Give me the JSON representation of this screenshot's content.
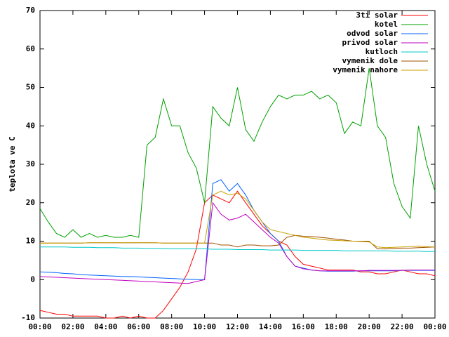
{
  "chart_data": {
    "type": "line",
    "ylabel": "teplota ve C",
    "x": [
      0,
      0.5,
      1,
      1.5,
      2,
      2.5,
      3,
      3.5,
      4,
      4.5,
      5,
      5.5,
      6,
      6.5,
      7,
      7.5,
      8,
      8.5,
      9,
      9.5,
      10,
      10.5,
      11,
      11.5,
      12,
      12.5,
      13,
      13.5,
      14,
      14.5,
      15,
      15.5,
      16,
      16.5,
      17,
      17.5,
      18,
      18.5,
      19,
      19.5,
      20,
      20.5,
      21,
      21.5,
      22,
      22.5,
      23,
      23.5,
      24
    ],
    "xlim": [
      0,
      24
    ],
    "xticks": [
      {
        "value": 0,
        "label": "00:00"
      },
      {
        "value": 2,
        "label": "02:00"
      },
      {
        "value": 4,
        "label": "04:00"
      },
      {
        "value": 6,
        "label": "06:00"
      },
      {
        "value": 8,
        "label": "08:00"
      },
      {
        "value": 10,
        "label": "10:00"
      },
      {
        "value": 12,
        "label": "12:00"
      },
      {
        "value": 14,
        "label": "14:00"
      },
      {
        "value": 16,
        "label": "16:00"
      },
      {
        "value": 18,
        "label": "18:00"
      },
      {
        "value": 20,
        "label": "20:00"
      },
      {
        "value": 22,
        "label": "22:00"
      },
      {
        "value": 24,
        "label": "00:00"
      }
    ],
    "ylim": [
      -10,
      70
    ],
    "yticks": [
      -10,
      0,
      10,
      20,
      30,
      40,
      50,
      60,
      70
    ],
    "legend": "top-right",
    "series": [
      {
        "name": "3ti solar",
        "color": "#ff0000",
        "values": [
          -8,
          -8.5,
          -9,
          -9,
          -9.5,
          -9.5,
          -9.5,
          -9.5,
          -10,
          -10,
          -9.5,
          -10,
          -9.5,
          -10,
          -10,
          -8,
          -5,
          -2,
          2,
          8,
          20,
          22,
          21,
          20,
          23,
          20,
          17,
          14,
          12,
          10,
          9,
          6,
          4,
          3.5,
          3,
          2.5,
          2.5,
          2.5,
          2.5,
          2,
          2,
          1.5,
          1.5,
          2,
          2.5,
          2,
          1.5,
          1.5,
          1
        ]
      },
      {
        "name": "kotel",
        "color": "#00a000",
        "values": [
          18.5,
          15,
          12,
          11,
          13,
          11,
          12,
          11,
          11.5,
          11,
          11,
          11.5,
          11,
          35,
          37,
          47,
          40,
          40,
          33,
          29,
          20,
          45,
          42,
          40,
          50,
          39,
          36,
          41,
          45,
          48,
          47,
          48,
          48,
          49,
          47,
          48,
          46,
          38,
          41,
          40,
          55,
          40,
          37,
          25,
          19,
          16,
          40,
          30,
          23
        ]
      },
      {
        "name": "odvod solar",
        "color": "#0060ff",
        "values": [
          2,
          1.9,
          1.8,
          1.6,
          1.5,
          1.3,
          1.2,
          1.1,
          1,
          0.9,
          0.8,
          0.8,
          0.7,
          0.6,
          0.5,
          0.4,
          0.3,
          0.2,
          0.1,
          0,
          0,
          25,
          26,
          23,
          25,
          22,
          18,
          15,
          12,
          10,
          6,
          3.5,
          3,
          2.5,
          2.3,
          2.2,
          2.2,
          2.2,
          2.2,
          2.3,
          2.3,
          2.3,
          2.3,
          2.3,
          2.4,
          2.4,
          2.4,
          2.4,
          2.4
        ]
      },
      {
        "name": "privod solar",
        "color": "#c000c0",
        "values": [
          0.8,
          0.7,
          0.6,
          0.5,
          0.4,
          0.3,
          0.2,
          0.1,
          0,
          -0.1,
          -0.2,
          -0.3,
          -0.4,
          -0.5,
          -0.6,
          -0.7,
          -0.8,
          -0.9,
          -1,
          -0.5,
          0,
          20,
          17,
          15.5,
          16,
          17,
          15,
          13,
          11,
          9.5,
          6,
          3.5,
          2.8,
          2.5,
          2.3,
          2.3,
          2.3,
          2.3,
          2.3,
          2.3,
          2.4,
          2.4,
          2.4,
          2.4,
          2.4,
          2.5,
          2.5,
          2.5,
          2.5
        ]
      },
      {
        "name": "kutloch",
        "color": "#00c8c8",
        "values": [
          8.5,
          8.5,
          8.5,
          8.5,
          8.4,
          8.4,
          8.4,
          8.3,
          8.3,
          8.3,
          8.2,
          8.2,
          8.2,
          8.1,
          8.1,
          8.1,
          8,
          8,
          8,
          8,
          8,
          7.9,
          7.9,
          7.9,
          7.8,
          7.8,
          7.8,
          7.8,
          7.7,
          7.7,
          7.7,
          7.7,
          7.6,
          7.6,
          7.6,
          7.6,
          7.6,
          7.5,
          7.5,
          7.5,
          7.5,
          7.5,
          7.5,
          7.4,
          7.4,
          7.4,
          7.4,
          7.3,
          7.3
        ]
      },
      {
        "name": "vymenik dole",
        "color": "#a05000",
        "values": [
          9.5,
          9.5,
          9.5,
          9.5,
          9.5,
          9.5,
          9.6,
          9.6,
          9.6,
          9.6,
          9.6,
          9.6,
          9.6,
          9.6,
          9.6,
          9.5,
          9.5,
          9.5,
          9.5,
          9.5,
          9.5,
          9.5,
          9,
          9,
          8.5,
          9,
          9,
          8.8,
          8.8,
          9,
          11,
          11.5,
          11.3,
          11.2,
          11,
          10.8,
          10.5,
          10.3,
          10,
          10,
          10,
          8,
          8,
          8.1,
          8.2,
          8.2,
          8.3,
          8.4,
          8.5
        ]
      },
      {
        "name": "vymenik nahore",
        "color": "#c8a000",
        "values": [
          9.5,
          9.5,
          9.5,
          9.5,
          9.5,
          9.5,
          9.6,
          9.6,
          9.6,
          9.6,
          9.6,
          9.6,
          9.6,
          9.6,
          9.6,
          9.5,
          9.5,
          9.5,
          9.5,
          9.5,
          9.5,
          22,
          23,
          22,
          22.5,
          21,
          18,
          15,
          13,
          12.5,
          12,
          11.5,
          11,
          10.8,
          10.5,
          10.3,
          10.2,
          10.1,
          10,
          9.9,
          9.8,
          8.5,
          8.3,
          8.4,
          8.5,
          8.6,
          8.7,
          8.6,
          8.5
        ]
      }
    ]
  }
}
